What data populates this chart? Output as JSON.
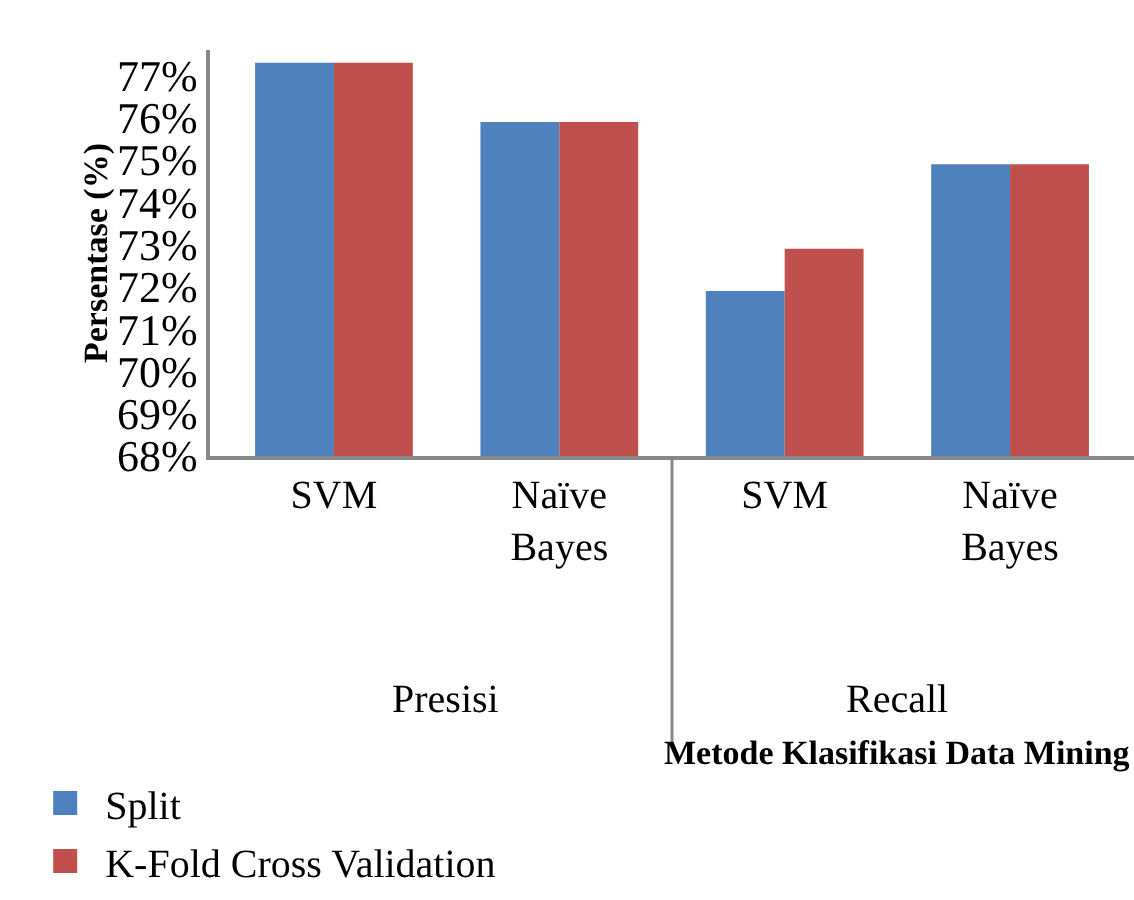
{
  "chart_data": {
    "type": "bar",
    "ylabel": "Persentase (%)",
    "xlabel": "Metode Klasifikasi Data Mining",
    "categories": [
      "SVM",
      "Naïve Bayes",
      "SVM",
      "Naïve Bayes"
    ],
    "series": [
      {
        "name": "Split",
        "color": "#4f81bd",
        "values": [
          77.3,
          75.9,
          71.9,
          74.9
        ]
      },
      {
        "name": "K-Fold Cross Validation",
        "color": "#c0504d",
        "values": [
          77.3,
          75.9,
          72.9,
          74.9
        ]
      }
    ],
    "annotations": [
      "Presisi",
      "Recall"
    ],
    "ylim": [
      68,
      77.6
    ],
    "yticks": [
      {
        "value": 68,
        "label": "68%"
      },
      {
        "value": 69,
        "label": "69%"
      },
      {
        "value": 70,
        "label": "70%"
      },
      {
        "value": 71,
        "label": "71%"
      },
      {
        "value": 72,
        "label": "72%"
      },
      {
        "value": 73,
        "label": "73%"
      },
      {
        "value": 74,
        "label": "74%"
      },
      {
        "value": 75,
        "label": "75%"
      },
      {
        "value": 76,
        "label": "76%"
      },
      {
        "value": 77,
        "label": "77%"
      }
    ],
    "legend": "bottom left"
  }
}
